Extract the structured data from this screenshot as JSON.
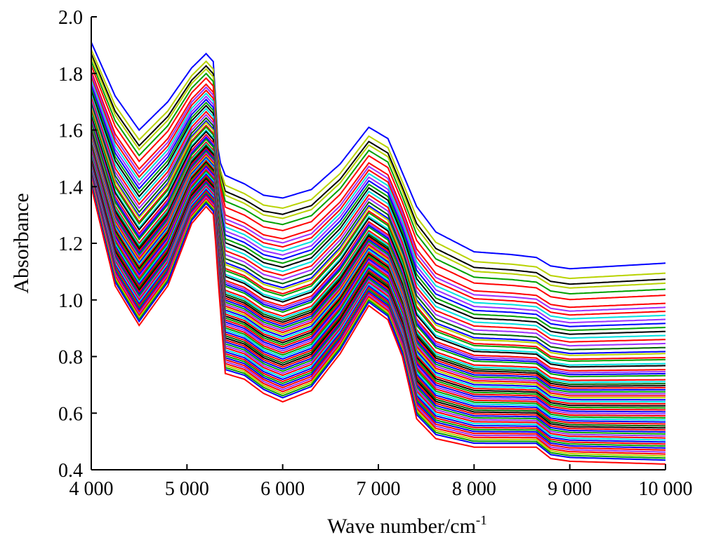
{
  "chart_data": {
    "type": "line",
    "title": "",
    "xlabel": "Wave number/cm",
    "xlabel_sup": "-1",
    "ylabel": "Absorbance",
    "xlim": [
      4000,
      10000
    ],
    "ylim": [
      0.4,
      2.0
    ],
    "xticks": [
      4000,
      5000,
      6000,
      7000,
      8000,
      9000,
      10000
    ],
    "xtick_labels": [
      "4 000",
      "5 000",
      "6 000",
      "7 000",
      "8 000",
      "9 000",
      "10 000"
    ],
    "yticks": [
      0.4,
      0.6,
      0.8,
      1.0,
      1.2,
      1.4,
      1.6,
      1.8,
      2.0
    ],
    "ytick_labels": [
      "0.4",
      "0.6",
      "0.8",
      "1.0",
      "1.2",
      "1.4",
      "1.6",
      "1.8",
      "2.0"
    ],
    "grid": false,
    "legend": "none",
    "envelope": {
      "x": [
        4000,
        4250,
        4500,
        4800,
        5050,
        5200,
        5280,
        5330,
        5400,
        5600,
        5800,
        6000,
        6300,
        6600,
        6900,
        7100,
        7250,
        7400,
        7600,
        8000,
        8400,
        8650,
        8800,
        9000,
        10000
      ],
      "upper": [
        1.91,
        1.72,
        1.6,
        1.7,
        1.82,
        1.87,
        1.84,
        1.5,
        1.44,
        1.41,
        1.37,
        1.36,
        1.39,
        1.48,
        1.61,
        1.57,
        1.45,
        1.33,
        1.24,
        1.17,
        1.16,
        1.15,
        1.12,
        1.11,
        1.13
      ],
      "lower": [
        1.4,
        1.05,
        0.91,
        1.05,
        1.27,
        1.33,
        1.3,
        1.05,
        0.74,
        0.72,
        0.67,
        0.64,
        0.68,
        0.81,
        0.98,
        0.93,
        0.8,
        0.58,
        0.51,
        0.48,
        0.48,
        0.48,
        0.44,
        0.43,
        0.42
      ]
    },
    "series_note": "each series interpolates the envelope at fraction t (0 = lower, 1 = upper)",
    "series": [
      {
        "t": 1.0,
        "color": "#0000ff"
      },
      {
        "t": 0.95,
        "color": "#b8d200"
      },
      {
        "t": 0.92,
        "color": "#000000"
      },
      {
        "t": 0.9,
        "color": "#b8d200"
      },
      {
        "t": 0.87,
        "color": "#00a000"
      },
      {
        "t": 0.84,
        "color": "#ff0000"
      },
      {
        "t": 0.8,
        "color": "#ff0000"
      },
      {
        "t": 0.78,
        "color": "#9b30ff"
      },
      {
        "t": 0.76,
        "color": "#ff0000"
      },
      {
        "t": 0.74,
        "color": "#00e0e0"
      },
      {
        "t": 0.72,
        "color": "#9b30ff"
      },
      {
        "t": 0.7,
        "color": "#0000ff"
      },
      {
        "t": 0.68,
        "color": "#00a000"
      },
      {
        "t": 0.66,
        "color": "#000000"
      },
      {
        "t": 0.64,
        "color": "#00e0e0"
      },
      {
        "t": 0.62,
        "color": "#ff0000"
      },
      {
        "t": 0.6,
        "color": "#9b30ff"
      },
      {
        "t": 0.58,
        "color": "#006400"
      },
      {
        "t": 0.56,
        "color": "#0000ff"
      },
      {
        "t": 0.55,
        "color": "#b8d200"
      },
      {
        "t": 0.53,
        "color": "#ff0000"
      },
      {
        "t": 0.52,
        "color": "#00a000"
      },
      {
        "t": 0.5,
        "color": "#00e0e0"
      },
      {
        "t": 0.49,
        "color": "#000000"
      },
      {
        "t": 0.47,
        "color": "#ff0000"
      },
      {
        "t": 0.46,
        "color": "#9b30ff"
      },
      {
        "t": 0.45,
        "color": "#0000ff"
      },
      {
        "t": 0.44,
        "color": "#00a000"
      },
      {
        "t": 0.42,
        "color": "#ff0000"
      },
      {
        "t": 0.41,
        "color": "#00e0e0"
      },
      {
        "t": 0.4,
        "color": "#006400"
      },
      {
        "t": 0.39,
        "color": "#000000"
      },
      {
        "t": 0.38,
        "color": "#ff0000"
      },
      {
        "t": 0.37,
        "color": "#0000ff"
      },
      {
        "t": 0.36,
        "color": "#00a000"
      },
      {
        "t": 0.35,
        "color": "#9b30ff"
      },
      {
        "t": 0.34,
        "color": "#ff0000"
      },
      {
        "t": 0.33,
        "color": "#b8d200"
      },
      {
        "t": 0.32,
        "color": "#0000ff"
      },
      {
        "t": 0.31,
        "color": "#00e0e0"
      },
      {
        "t": 0.3,
        "color": "#ff0000"
      },
      {
        "t": 0.29,
        "color": "#000000"
      },
      {
        "t": 0.28,
        "color": "#00a000"
      },
      {
        "t": 0.27,
        "color": "#ff0000"
      },
      {
        "t": 0.26,
        "color": "#0000ff"
      },
      {
        "t": 0.25,
        "color": "#9b30ff"
      },
      {
        "t": 0.24,
        "color": "#ff0000"
      },
      {
        "t": 0.23,
        "color": "#00a000"
      },
      {
        "t": 0.22,
        "color": "#00e0e0"
      },
      {
        "t": 0.21,
        "color": "#0000ff"
      },
      {
        "t": 0.2,
        "color": "#ff0000"
      },
      {
        "t": 0.19,
        "color": "#006400"
      },
      {
        "t": 0.18,
        "color": "#000000"
      },
      {
        "t": 0.17,
        "color": "#ff0000"
      },
      {
        "t": 0.16,
        "color": "#0000ff"
      },
      {
        "t": 0.15,
        "color": "#00a000"
      },
      {
        "t": 0.14,
        "color": "#9b30ff"
      },
      {
        "t": 0.13,
        "color": "#ff0000"
      },
      {
        "t": 0.12,
        "color": "#00e0e0"
      },
      {
        "t": 0.11,
        "color": "#0000ff"
      },
      {
        "t": 0.1,
        "color": "#ff0000"
      },
      {
        "t": 0.09,
        "color": "#00a000"
      },
      {
        "t": 0.08,
        "color": "#0000ff"
      },
      {
        "t": 0.07,
        "color": "#ff0000"
      },
      {
        "t": 0.06,
        "color": "#9b30ff"
      },
      {
        "t": 0.05,
        "color": "#ff0000"
      },
      {
        "t": 0.04,
        "color": "#b8d200"
      },
      {
        "t": 0.03,
        "color": "#00a000"
      },
      {
        "t": 0.02,
        "color": "#0000ff"
      },
      {
        "t": 0.0,
        "color": "#ff0000"
      }
    ]
  }
}
